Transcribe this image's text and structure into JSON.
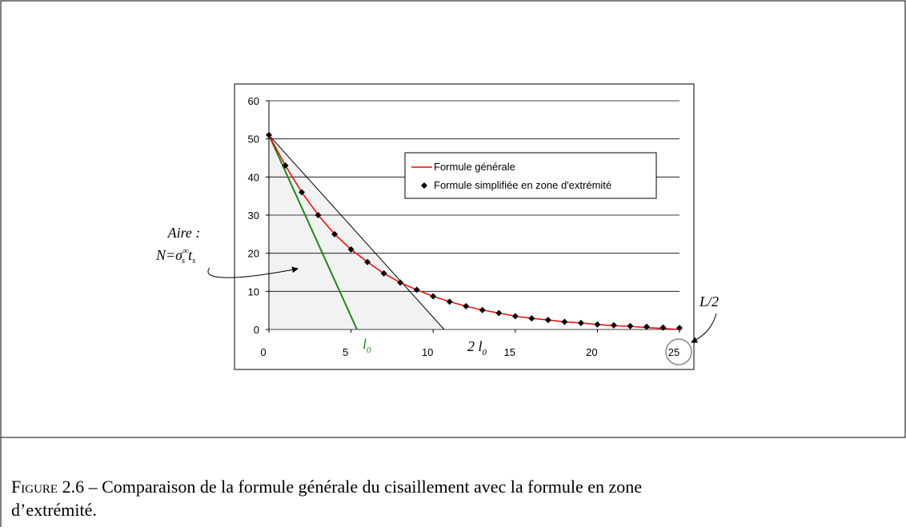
{
  "chart_data": {
    "type": "line",
    "x": [
      0,
      1,
      2,
      3,
      4,
      5,
      6,
      7,
      8,
      9,
      10,
      11,
      12,
      13,
      14,
      15,
      16,
      17,
      18,
      19,
      20,
      21,
      22,
      23,
      24,
      25
    ],
    "series": [
      {
        "name": "Formule générale",
        "color": "#ff0000",
        "marker": "none",
        "values": [
          51,
          43,
          36,
          30,
          25,
          21,
          17.7,
          14.7,
          12.3,
          10.4,
          8.7,
          7.3,
          6.1,
          5.1,
          4.3,
          3.5,
          2.9,
          2.5,
          2.0,
          1.7,
          1.3,
          1.0,
          0.8,
          0.5,
          0.25,
          0
        ]
      },
      {
        "name": "Formule simplifiée en zone d'extrémité",
        "color": "#000000",
        "marker": "diamond",
        "values": [
          51,
          43,
          36,
          30,
          25,
          21,
          17.7,
          14.7,
          12.3,
          10.4,
          8.7,
          7.3,
          6.1,
          5.1,
          4.3,
          3.5,
          2.9,
          2.5,
          2.0,
          1.7,
          1.3,
          1.1,
          0.9,
          0.7,
          0.5,
          0.4
        ]
      }
    ],
    "lines": [
      {
        "color": "#1a8a1a",
        "x": [
          0,
          5.36
        ],
        "y": [
          51,
          0
        ]
      },
      {
        "color": "#000000",
        "x": [
          0,
          10.67
        ],
        "y": [
          51,
          0
        ]
      }
    ],
    "xlim": [
      0,
      25
    ],
    "xticks": [
      0,
      5,
      10,
      15,
      20,
      25
    ],
    "ylim": [
      0,
      60
    ],
    "yticks": [
      0,
      10,
      20,
      30,
      40,
      50,
      60
    ],
    "grid": true,
    "annotations": {
      "area": "Aire :",
      "formula": {
        "lhs": "N=σ",
        "sub1": "s",
        "sup1": "∞",
        "t": "t",
        "sub2": "s"
      },
      "l0": {
        "l": "l",
        "sub": "0"
      },
      "two_l0": {
        "l": "2 l",
        "sub": "0"
      },
      "half": "L/2"
    }
  },
  "caption": {
    "label": "Figure 2.6",
    "lines": [
      " – Comparaison de la formule générale du cisaillement avec la formule en zone",
      "d’extrémité."
    ]
  }
}
